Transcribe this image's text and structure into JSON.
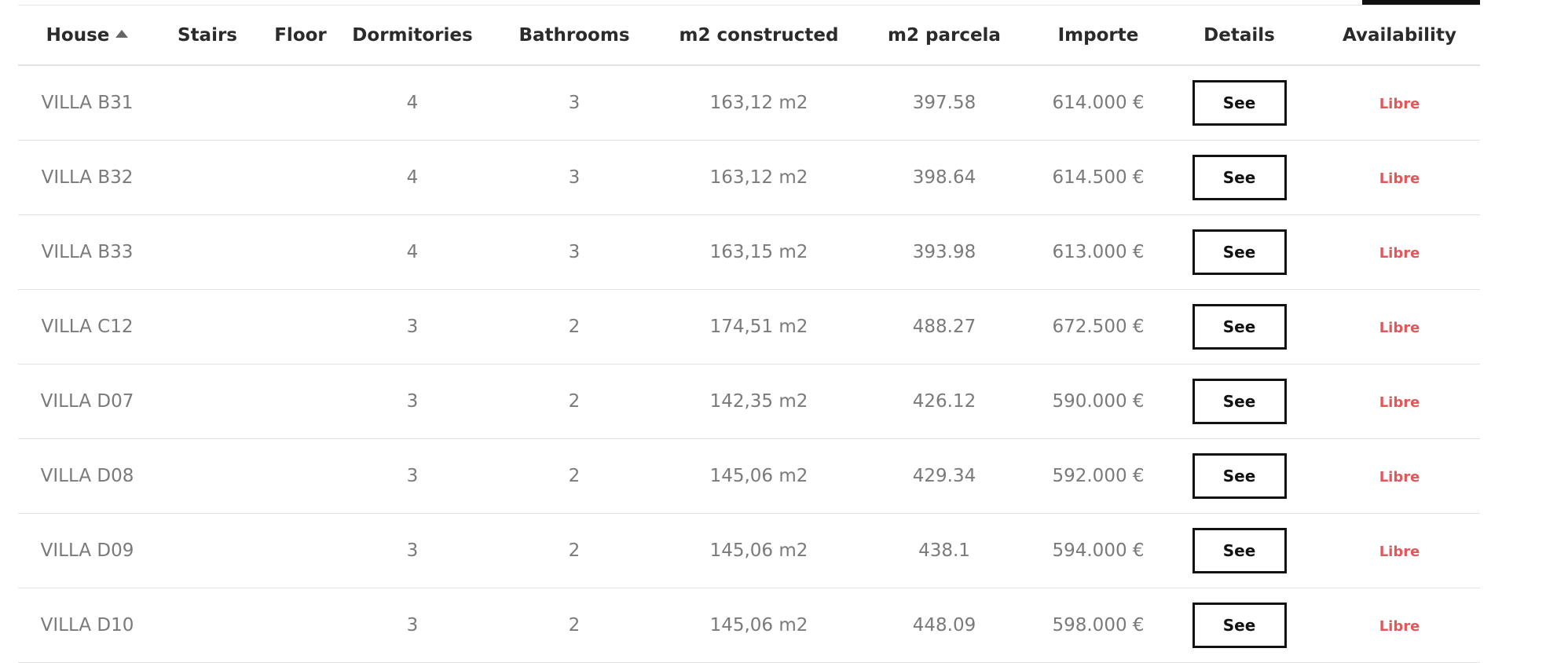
{
  "colors": {
    "status_free": "#e2585a",
    "header_text": "#2b2b2b",
    "cell_text": "#7a7a7a",
    "button_border": "#111111"
  },
  "table": {
    "columns": {
      "house": "House",
      "stairs": "Stairs",
      "floor": "Floor",
      "dormitories": "Dormitories",
      "bathrooms": "Bathrooms",
      "m2_constructed": "m2 constructed",
      "m2_parcela": "m2 parcela",
      "importe": "Importe",
      "details": "Details",
      "availability": "Availability"
    },
    "sort": {
      "column": "house",
      "direction": "ascending",
      "icon": "sort-ascending-icon"
    },
    "rows": [
      {
        "house": "VILLA B31",
        "stairs": "",
        "floor": "",
        "dormitories": "4",
        "bathrooms": "3",
        "m2_constructed": "163,12 m2",
        "m2_parcela": "397.58",
        "importe": "614.000 €",
        "details": "See",
        "availability": "Libre"
      },
      {
        "house": "VILLA B32",
        "stairs": "",
        "floor": "",
        "dormitories": "4",
        "bathrooms": "3",
        "m2_constructed": "163,12 m2",
        "m2_parcela": "398.64",
        "importe": "614.500 €",
        "details": "See",
        "availability": "Libre"
      },
      {
        "house": "VILLA B33",
        "stairs": "",
        "floor": "",
        "dormitories": "4",
        "bathrooms": "3",
        "m2_constructed": "163,15 m2",
        "m2_parcela": "393.98",
        "importe": "613.000 €",
        "details": "See",
        "availability": "Libre"
      },
      {
        "house": "VILLA C12",
        "stairs": "",
        "floor": "",
        "dormitories": "3",
        "bathrooms": "2",
        "m2_constructed": "174,51 m2",
        "m2_parcela": "488.27",
        "importe": "672.500 €",
        "details": "See",
        "availability": "Libre"
      },
      {
        "house": "VILLA D07",
        "stairs": "",
        "floor": "",
        "dormitories": "3",
        "bathrooms": "2",
        "m2_constructed": "142,35 m2",
        "m2_parcela": "426.12",
        "importe": "590.000 €",
        "details": "See",
        "availability": "Libre"
      },
      {
        "house": "VILLA D08",
        "stairs": "",
        "floor": "",
        "dormitories": "3",
        "bathrooms": "2",
        "m2_constructed": "145,06 m2",
        "m2_parcela": "429.34",
        "importe": "592.000 €",
        "details": "See",
        "availability": "Libre"
      },
      {
        "house": "VILLA D09",
        "stairs": "",
        "floor": "",
        "dormitories": "3",
        "bathrooms": "2",
        "m2_constructed": "145,06 m2",
        "m2_parcela": "438.1",
        "importe": "594.000 €",
        "details": "See",
        "availability": "Libre"
      },
      {
        "house": "VILLA D10",
        "stairs": "",
        "floor": "",
        "dormitories": "3",
        "bathrooms": "2",
        "m2_constructed": "145,06 m2",
        "m2_parcela": "448.09",
        "importe": "598.000 €",
        "details": "See",
        "availability": "Libre"
      }
    ]
  }
}
